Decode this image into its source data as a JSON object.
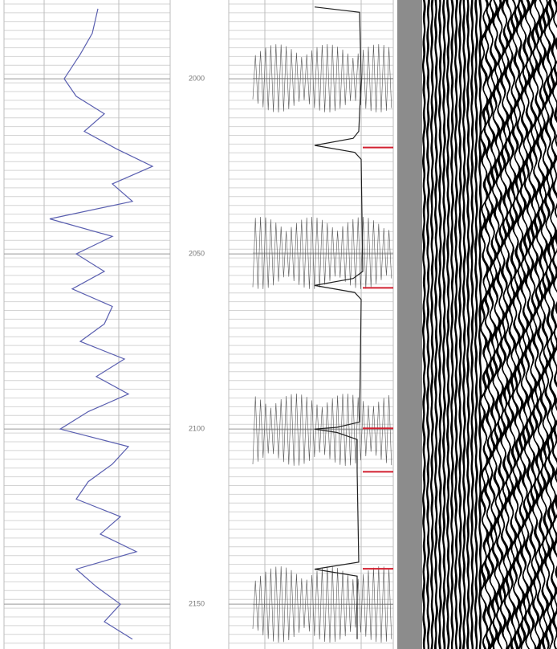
{
  "chart_data": [
    {
      "type": "line",
      "color": "#5a5fb0",
      "xlim": [
        5,
        212
      ],
      "ylim": [
        1977.5,
        2162.8
      ],
      "depths": [
        1980,
        1987,
        1993,
        2000,
        2005,
        2010,
        2015,
        2020,
        2025,
        2030,
        2035,
        2040,
        2045,
        2050,
        2055,
        2060,
        2065,
        2070,
        2075,
        2080,
        2085,
        2090,
        2095,
        2100,
        2105,
        2110,
        2115,
        2120,
        2125,
        2130,
        2135,
        2140,
        2145,
        2150,
        2155,
        2160
      ],
      "values": [
        122,
        115,
        100,
        80,
        95,
        130,
        105,
        145,
        190,
        140,
        165,
        62,
        140,
        95,
        130,
        90,
        140,
        130,
        100,
        155,
        120,
        160,
        110,
        75,
        160,
        140,
        110,
        95,
        150,
        125,
        170,
        95,
        120,
        150,
        130,
        165
      ]
    },
    {
      "type": "line",
      "color": "#222222",
      "xlim": [
        285,
        490
      ],
      "ylim": [
        1977.5,
        2162.8
      ],
      "yticks": [
        2000,
        2050,
        2100,
        2150
      ],
      "depths": [
        1979.5,
        1981,
        2000,
        2015,
        2017,
        2019,
        2021,
        2023,
        2055,
        2057,
        2059,
        2061,
        2063,
        2098,
        2099.5,
        2100,
        2101,
        2103,
        2112,
        2138,
        2140,
        2142,
        2160
      ],
      "values": [
        392,
        448,
        450,
        447,
        440,
        392,
        442,
        450,
        452,
        440,
        392,
        442,
        450,
        448,
        420,
        392,
        420,
        445,
        445,
        447,
        392,
        445,
        445
      ]
    },
    {
      "type": "markers",
      "color": "#d22030",
      "ylim": [
        1977.5,
        2162.8
      ],
      "depths": [
        2019.6,
        2059.7,
        2099.8,
        2112.2,
        2139.9
      ]
    }
  ]
}
